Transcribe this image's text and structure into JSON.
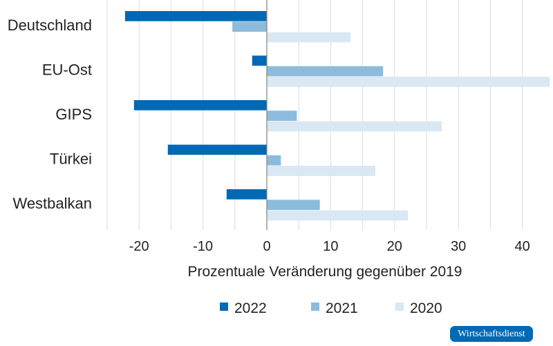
{
  "chart_data": {
    "type": "bar",
    "orientation": "horizontal",
    "categories": [
      "Deutschland",
      "EU-Ost",
      "GIPS",
      "Türkei",
      "Westbalkan"
    ],
    "series": [
      {
        "name": "2022",
        "color": "#0069b4",
        "values": [
          -22.2,
          -2.3,
          -20.8,
          -15.5,
          -6.3
        ]
      },
      {
        "name": "2021",
        "color": "#8dbbdc",
        "values": [
          -5.4,
          18.2,
          4.7,
          2.2,
          8.3
        ]
      },
      {
        "name": "2020",
        "color": "#d9e8f3",
        "values": [
          13.1,
          44.3,
          27.4,
          17.0,
          22.1
        ]
      }
    ],
    "xlabel": "Prozentuale Veränderung gegenüber 2019",
    "xlim": [
      -25,
      44.3
    ],
    "xticks": [
      -20,
      -10,
      0,
      10,
      20,
      30,
      40
    ],
    "grid_step": 5,
    "grid": true,
    "legend_position": "bottom"
  },
  "badge": "Wirtschaftsdienst"
}
